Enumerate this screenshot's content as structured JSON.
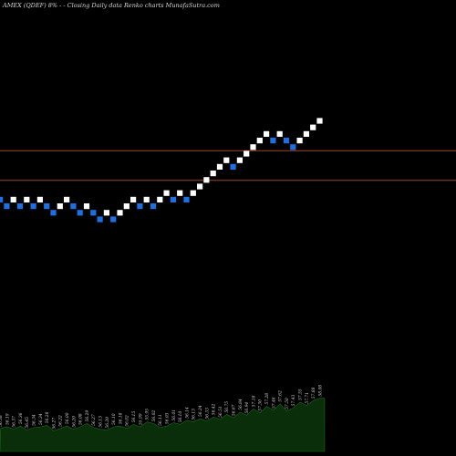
{
  "header": {
    "title": "AMEX  (QDEF)  8% - -  Closing Daily data  Renko  charts MunafaSutra.com"
  },
  "colors": {
    "background": "#000000",
    "up": "#ffffff",
    "down": "#1f6fe0",
    "line": "#a0452a",
    "volume": "#0a2e0a",
    "volume_edge": "#1a6b1a"
  },
  "chart_data": {
    "type": "renko",
    "title": "AMEX  (QDEF)  8% - -  Closing Daily data  Renko  charts MunafaSutra.com",
    "reference_levels": [
      {
        "value": 8.5
      },
      {
        "value": 4
      }
    ],
    "bricks": [
      {
        "level": 1,
        "dir": "down"
      },
      {
        "level": 0,
        "dir": "down"
      },
      {
        "level": 1,
        "dir": "up"
      },
      {
        "level": 0,
        "dir": "down"
      },
      {
        "level": 1,
        "dir": "up"
      },
      {
        "level": 0,
        "dir": "down"
      },
      {
        "level": 1,
        "dir": "up"
      },
      {
        "level": 0,
        "dir": "down"
      },
      {
        "level": -1,
        "dir": "down"
      },
      {
        "level": 0,
        "dir": "up"
      },
      {
        "level": 1,
        "dir": "up"
      },
      {
        "level": 0,
        "dir": "down"
      },
      {
        "level": -1,
        "dir": "down"
      },
      {
        "level": 0,
        "dir": "up"
      },
      {
        "level": -1,
        "dir": "down"
      },
      {
        "level": -2,
        "dir": "down"
      },
      {
        "level": -1,
        "dir": "up"
      },
      {
        "level": -2,
        "dir": "down"
      },
      {
        "level": -1,
        "dir": "up"
      },
      {
        "level": 0,
        "dir": "up"
      },
      {
        "level": 1,
        "dir": "up"
      },
      {
        "level": 0,
        "dir": "down"
      },
      {
        "level": 1,
        "dir": "up"
      },
      {
        "level": 0,
        "dir": "down"
      },
      {
        "level": 1,
        "dir": "up"
      },
      {
        "level": 2,
        "dir": "up"
      },
      {
        "level": 1,
        "dir": "down"
      },
      {
        "level": 2,
        "dir": "up"
      },
      {
        "level": 1,
        "dir": "down"
      },
      {
        "level": 2,
        "dir": "up"
      },
      {
        "level": 3,
        "dir": "up"
      },
      {
        "level": 4,
        "dir": "up"
      },
      {
        "level": 5,
        "dir": "up"
      },
      {
        "level": 6,
        "dir": "up"
      },
      {
        "level": 7,
        "dir": "up"
      },
      {
        "level": 6,
        "dir": "down"
      },
      {
        "level": 7,
        "dir": "up"
      },
      {
        "level": 8,
        "dir": "up"
      },
      {
        "level": 9,
        "dir": "up"
      },
      {
        "level": 10,
        "dir": "up"
      },
      {
        "level": 11,
        "dir": "up"
      },
      {
        "level": 10,
        "dir": "down"
      },
      {
        "level": 11,
        "dir": "up"
      },
      {
        "level": 10,
        "dir": "down"
      },
      {
        "level": 9,
        "dir": "down"
      },
      {
        "level": 10,
        "dir": "up"
      },
      {
        "level": 11,
        "dir": "up"
      },
      {
        "level": 12,
        "dir": "up"
      },
      {
        "level": 13,
        "dir": "up"
      }
    ],
    "volume": [
      28,
      30,
      27,
      31,
      26,
      29,
      30,
      32,
      25,
      28,
      31,
      27,
      30,
      34,
      29,
      27,
      26,
      30,
      31,
      28,
      33,
      30,
      36,
      34,
      29,
      31,
      35,
      33,
      38,
      36,
      40,
      37,
      42,
      39,
      45,
      41,
      48,
      44,
      52,
      47,
      55,
      50,
      58,
      49,
      53,
      60,
      56,
      62,
      65
    ],
    "volume_labels": [
      "56.38",
      "56.19",
      "56.37",
      "56.36",
      "56.45",
      "56.34",
      "56.34",
      "56.28",
      "56.27",
      "56.22",
      "56.00",
      "56.20",
      "56.08",
      "56.29",
      "56.27",
      "56.13",
      "56.20",
      "56.10",
      "56.18",
      "56.02",
      "56.15",
      "55.99",
      "55.95",
      "56.02",
      "56.11",
      "56.03",
      "56.01",
      "56.10",
      "56.14",
      "56.13",
      "56.24",
      "56.33",
      "56.42",
      "56.51",
      "56.75",
      "56.67",
      "56.84",
      "56.94",
      "57.18",
      "57.30",
      "57.28",
      "57.46",
      "57.62",
      "57.50",
      "57.43",
      "57.55",
      "57.71",
      "57.88",
      "58.08"
    ]
  }
}
